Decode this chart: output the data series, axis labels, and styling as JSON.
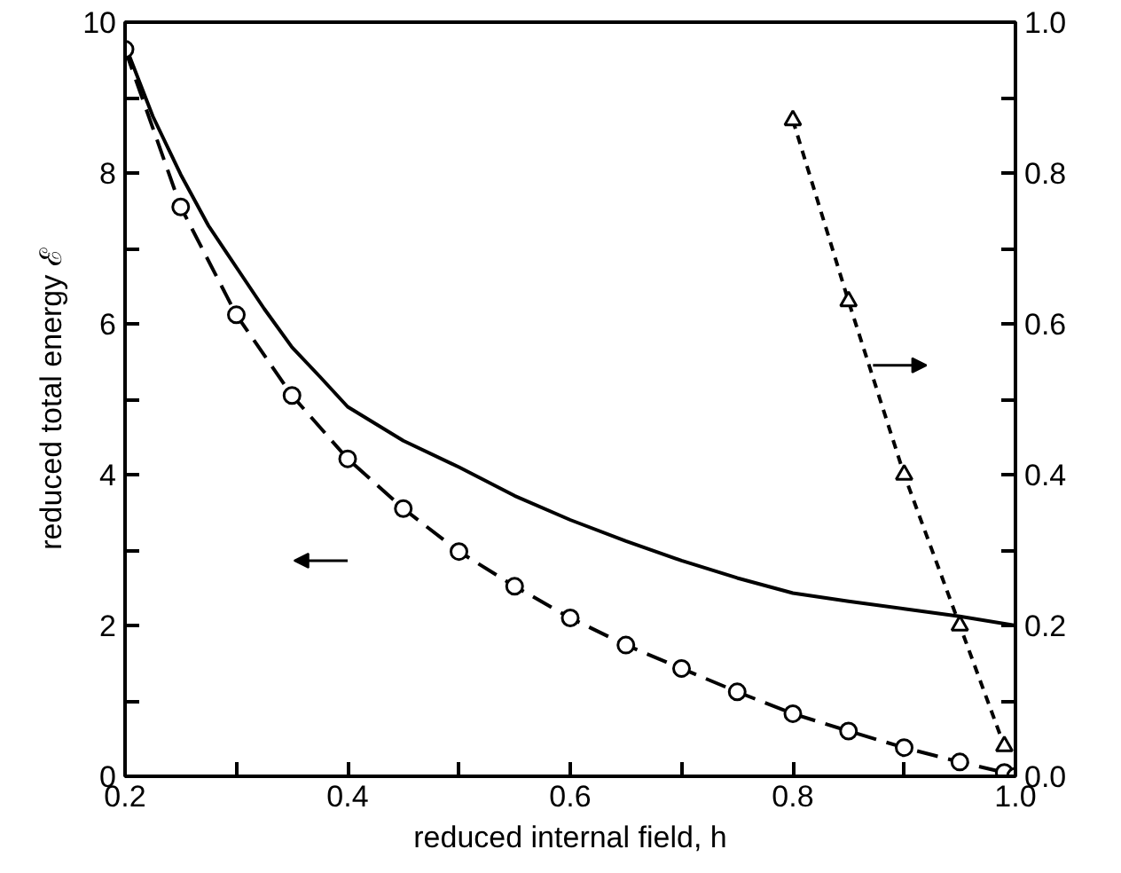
{
  "chart_data": {
    "type": "line",
    "xlabel": "reduced internal field, h",
    "ylabel": "reduced total energy ℰ",
    "xlim": [
      0.2,
      1.0
    ],
    "xticks": [
      0.2,
      {
        "value": 0.3,
        "label": null
      },
      0.4,
      {
        "value": 0.5,
        "label": null
      },
      0.6,
      {
        "value": 0.7,
        "label": null
      },
      0.8,
      {
        "value": 0.9,
        "label": null
      },
      {
        "value": 1.0,
        "label": "1.0"
      }
    ],
    "ylim": [
      0,
      10
    ],
    "yticks": [
      0,
      {
        "value": 1,
        "label": null
      },
      2,
      {
        "value": 3,
        "label": null
      },
      4,
      {
        "value": 5,
        "label": null
      },
      6,
      {
        "value": 7,
        "label": null
      },
      8,
      {
        "value": 9,
        "label": null
      },
      10
    ],
    "y2lim": [
      0.0,
      1.0
    ],
    "y2ticks": [
      {
        "value": 0,
        "label": "0.0"
      },
      {
        "value": 0.1,
        "label": null
      },
      0.2,
      {
        "value": 0.3,
        "label": null
      },
      0.4,
      {
        "value": 0.5,
        "label": null
      },
      0.6,
      {
        "value": 0.7,
        "label": null
      },
      0.8,
      {
        "value": 0.9,
        "label": null
      },
      {
        "value": 1,
        "label": "1.0"
      }
    ],
    "grid": false,
    "series": [
      {
        "color": "#000000",
        "line_style": "solid",
        "marker": "none",
        "x": [
          0.2,
          0.225,
          0.25,
          0.275,
          0.3,
          0.325,
          0.35,
          0.375,
          0.4,
          0.45,
          0.5,
          0.55,
          0.6,
          0.65,
          0.7,
          0.75,
          0.8,
          0.85,
          0.9,
          0.95,
          1.0
        ],
        "values": [
          9.7,
          8.75,
          7.98,
          7.3,
          6.75,
          6.2,
          5.69,
          5.3,
          4.9,
          4.45,
          4.1,
          3.72,
          3.4,
          3.12,
          2.86,
          2.63,
          2.43,
          2.32,
          2.22,
          2.12,
          2.0
        ]
      },
      {
        "color": "#000000",
        "line_style": "dashed",
        "marker": "circle",
        "x": [
          0.2,
          0.25,
          0.3,
          0.35,
          0.4,
          0.45,
          0.5,
          0.55,
          0.6,
          0.65,
          0.7,
          0.75,
          0.8,
          0.85,
          0.9,
          0.95,
          0.99,
          1.0
        ],
        "values": [
          9.64,
          7.55,
          6.12,
          5.05,
          4.21,
          3.55,
          2.98,
          2.52,
          2.1,
          1.74,
          1.43,
          1.12,
          0.83,
          0.6,
          0.38,
          0.19,
          0.05,
          0.0
        ]
      },
      {
        "color": "#000000",
        "line_style": "dotted",
        "marker": "triangle",
        "axis": "y2",
        "x": [
          0.8,
          0.85,
          0.9,
          0.95,
          0.99
        ],
        "values": [
          0.87,
          0.63,
          0.4,
          0.2,
          0.04
        ]
      }
    ]
  }
}
